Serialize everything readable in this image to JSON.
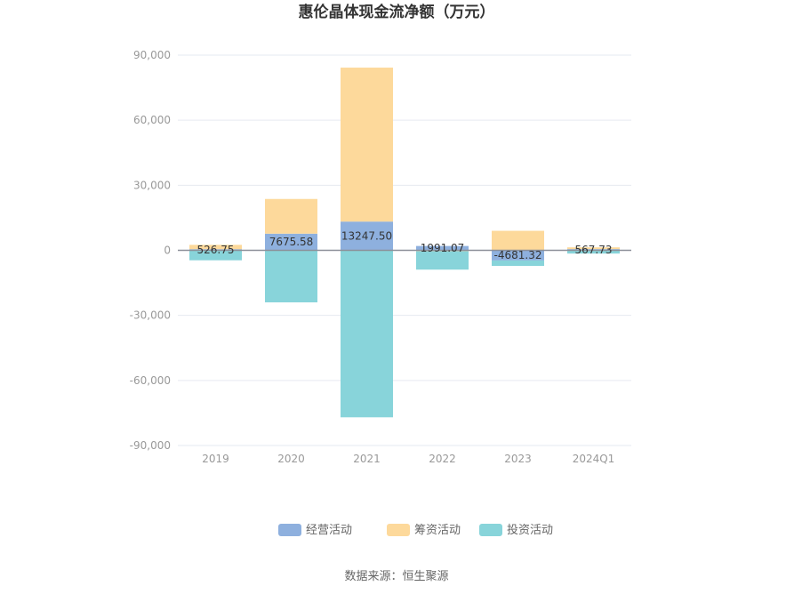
{
  "chart_data": {
    "type": "bar",
    "stacked": true,
    "title": "惠伦晶体现金流净额（万元）",
    "source": "数据来源：恒生聚源",
    "categories": [
      "2019",
      "2020",
      "2021",
      "2022",
      "2023",
      "2024Q1"
    ],
    "ylim": [
      -90000,
      90000
    ],
    "yticks": [
      90000,
      60000,
      30000,
      0,
      -30000,
      -60000,
      -90000
    ],
    "ytick_labels": [
      "90,000",
      "60,000",
      "30,000",
      "0",
      "-30,000",
      "-60,000",
      "-90,000"
    ],
    "grid": true,
    "legend_position": "bottom",
    "series": [
      {
        "name": "经营活动",
        "color": "#8eb0de",
        "values": [
          526.75,
          7675.58,
          13247.5,
          1991.07,
          -4681.32,
          567.73
        ],
        "labels": [
          "526.75",
          "7675.58",
          "13247.50",
          "1991.07",
          "-4681.32",
          "567.73"
        ]
      },
      {
        "name": "筹资活动",
        "color": "#fdd99b",
        "values": [
          2000,
          16000,
          71000,
          -400,
          9000,
          800
        ]
      },
      {
        "name": "投资活动",
        "color": "#88d4da",
        "values": [
          -4600,
          -24000,
          -77000,
          -8500,
          -2500,
          -1500
        ]
      }
    ]
  }
}
